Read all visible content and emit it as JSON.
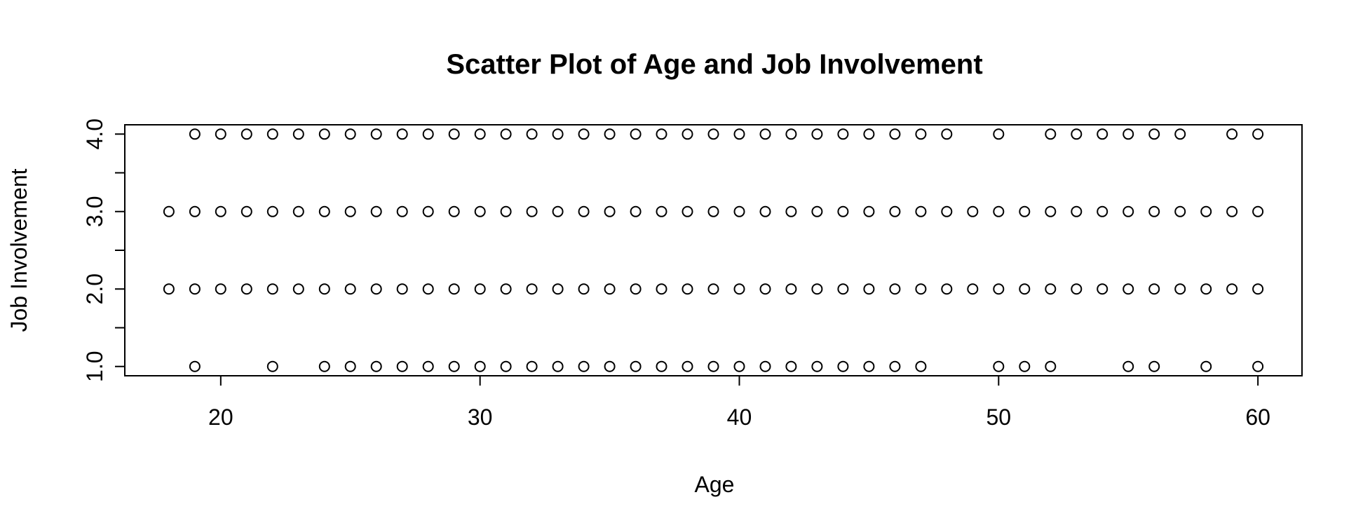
{
  "chart_data": {
    "type": "scatter",
    "title": "Scatter Plot of Age and Job Involvement",
    "xlabel": "Age",
    "ylabel": "Job Involvement",
    "xlim": [
      16.3,
      61.7
    ],
    "ylim": [
      0.88,
      4.12
    ],
    "x_ticks": [
      20,
      30,
      40,
      50,
      60
    ],
    "x_tick_labels": [
      "20",
      "30",
      "40",
      "50",
      "60"
    ],
    "y_ticks": [
      1,
      1.5,
      2,
      2.5,
      3,
      3.5,
      4
    ],
    "y_tick_labels": [
      "1.0",
      "",
      "2.0",
      "",
      "3.0",
      "",
      "4.0"
    ],
    "grid": false,
    "marker": "open-circle",
    "colors": {
      "marker": "#000000",
      "axis": "#000000"
    },
    "series": [
      {
        "values": [
          [
            19,
            4
          ],
          [
            20,
            4
          ],
          [
            21,
            4
          ],
          [
            22,
            4
          ],
          [
            23,
            4
          ],
          [
            24,
            4
          ],
          [
            25,
            4
          ],
          [
            26,
            4
          ],
          [
            27,
            4
          ],
          [
            28,
            4
          ],
          [
            29,
            4
          ],
          [
            30,
            4
          ],
          [
            31,
            4
          ],
          [
            32,
            4
          ],
          [
            33,
            4
          ],
          [
            34,
            4
          ],
          [
            35,
            4
          ],
          [
            36,
            4
          ],
          [
            37,
            4
          ],
          [
            38,
            4
          ],
          [
            39,
            4
          ],
          [
            40,
            4
          ],
          [
            41,
            4
          ],
          [
            42,
            4
          ],
          [
            43,
            4
          ],
          [
            44,
            4
          ],
          [
            45,
            4
          ],
          [
            46,
            4
          ],
          [
            47,
            4
          ],
          [
            48,
            4
          ],
          [
            50,
            4
          ],
          [
            52,
            4
          ],
          [
            53,
            4
          ],
          [
            54,
            4
          ],
          [
            55,
            4
          ],
          [
            56,
            4
          ],
          [
            57,
            4
          ],
          [
            59,
            4
          ],
          [
            60,
            4
          ],
          [
            18,
            3
          ],
          [
            19,
            3
          ],
          [
            20,
            3
          ],
          [
            21,
            3
          ],
          [
            22,
            3
          ],
          [
            23,
            3
          ],
          [
            24,
            3
          ],
          [
            25,
            3
          ],
          [
            26,
            3
          ],
          [
            27,
            3
          ],
          [
            28,
            3
          ],
          [
            29,
            3
          ],
          [
            30,
            3
          ],
          [
            31,
            3
          ],
          [
            32,
            3
          ],
          [
            33,
            3
          ],
          [
            34,
            3
          ],
          [
            35,
            3
          ],
          [
            36,
            3
          ],
          [
            37,
            3
          ],
          [
            38,
            3
          ],
          [
            39,
            3
          ],
          [
            40,
            3
          ],
          [
            41,
            3
          ],
          [
            42,
            3
          ],
          [
            43,
            3
          ],
          [
            44,
            3
          ],
          [
            45,
            3
          ],
          [
            46,
            3
          ],
          [
            47,
            3
          ],
          [
            48,
            3
          ],
          [
            49,
            3
          ],
          [
            50,
            3
          ],
          [
            51,
            3
          ],
          [
            52,
            3
          ],
          [
            53,
            3
          ],
          [
            54,
            3
          ],
          [
            55,
            3
          ],
          [
            56,
            3
          ],
          [
            57,
            3
          ],
          [
            58,
            3
          ],
          [
            59,
            3
          ],
          [
            60,
            3
          ],
          [
            18,
            2
          ],
          [
            19,
            2
          ],
          [
            20,
            2
          ],
          [
            21,
            2
          ],
          [
            22,
            2
          ],
          [
            23,
            2
          ],
          [
            24,
            2
          ],
          [
            25,
            2
          ],
          [
            26,
            2
          ],
          [
            27,
            2
          ],
          [
            28,
            2
          ],
          [
            29,
            2
          ],
          [
            30,
            2
          ],
          [
            31,
            2
          ],
          [
            32,
            2
          ],
          [
            33,
            2
          ],
          [
            34,
            2
          ],
          [
            35,
            2
          ],
          [
            36,
            2
          ],
          [
            37,
            2
          ],
          [
            38,
            2
          ],
          [
            39,
            2
          ],
          [
            40,
            2
          ],
          [
            41,
            2
          ],
          [
            42,
            2
          ],
          [
            43,
            2
          ],
          [
            44,
            2
          ],
          [
            45,
            2
          ],
          [
            46,
            2
          ],
          [
            47,
            2
          ],
          [
            48,
            2
          ],
          [
            49,
            2
          ],
          [
            50,
            2
          ],
          [
            51,
            2
          ],
          [
            52,
            2
          ],
          [
            53,
            2
          ],
          [
            54,
            2
          ],
          [
            55,
            2
          ],
          [
            56,
            2
          ],
          [
            57,
            2
          ],
          [
            58,
            2
          ],
          [
            59,
            2
          ],
          [
            60,
            2
          ],
          [
            19,
            1
          ],
          [
            22,
            1
          ],
          [
            24,
            1
          ],
          [
            25,
            1
          ],
          [
            26,
            1
          ],
          [
            27,
            1
          ],
          [
            28,
            1
          ],
          [
            29,
            1
          ],
          [
            30,
            1
          ],
          [
            31,
            1
          ],
          [
            32,
            1
          ],
          [
            33,
            1
          ],
          [
            34,
            1
          ],
          [
            35,
            1
          ],
          [
            36,
            1
          ],
          [
            37,
            1
          ],
          [
            38,
            1
          ],
          [
            39,
            1
          ],
          [
            40,
            1
          ],
          [
            41,
            1
          ],
          [
            42,
            1
          ],
          [
            43,
            1
          ],
          [
            44,
            1
          ],
          [
            45,
            1
          ],
          [
            46,
            1
          ],
          [
            47,
            1
          ],
          [
            50,
            1
          ],
          [
            51,
            1
          ],
          [
            52,
            1
          ],
          [
            55,
            1
          ],
          [
            56,
            1
          ],
          [
            58,
            1
          ],
          [
            60,
            1
          ]
        ]
      }
    ]
  }
}
